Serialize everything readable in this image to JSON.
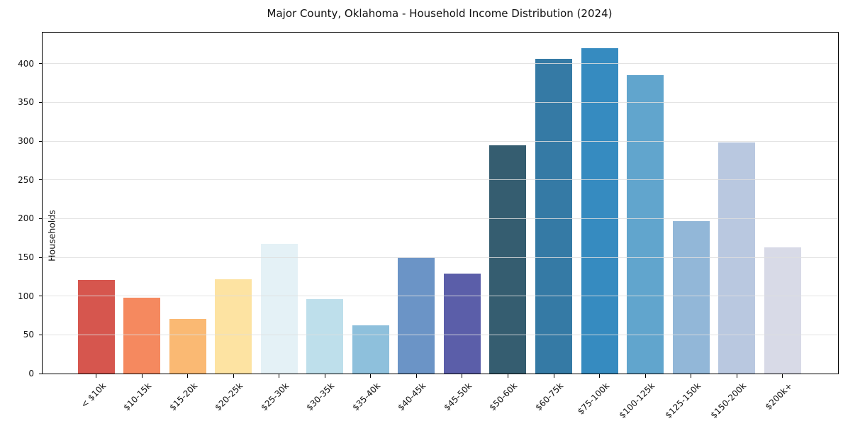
{
  "chart_data": {
    "type": "bar",
    "title": "Major County, Oklahoma - Household Income Distribution (2024)",
    "xlabel": "",
    "ylabel": "Households",
    "categories": [
      "< $10k",
      "$10-15k",
      "$15-20k",
      "$20-25k",
      "$25-30k",
      "$30-35k",
      "$35-40k",
      "$40-45k",
      "$45-50k",
      "$50-60k",
      "$60-75k",
      "$75-100k",
      "$100-125k",
      "$125-150k",
      "$150-200k",
      "$200k+"
    ],
    "values": [
      121,
      98,
      70,
      122,
      167,
      96,
      62,
      150,
      129,
      295,
      406,
      420,
      385,
      197,
      298,
      163
    ],
    "bar_colors": [
      "#d6564e",
      "#f5895f",
      "#fab973",
      "#fde3a2",
      "#e4f1f6",
      "#bedfeb",
      "#8ec0dc",
      "#6b94c6",
      "#5b5ea9",
      "#355d70",
      "#357aa5",
      "#368bc0",
      "#61a5cd",
      "#92b7d8",
      "#b9c8e0",
      "#d8dae7"
    ],
    "ylim": [
      0,
      440
    ],
    "yticks": [
      0,
      50,
      100,
      150,
      200,
      250,
      300,
      350,
      400
    ],
    "grid": "horizontal-light-gray",
    "legend": "none",
    "x_tick_rotation_deg": 45,
    "background_color": "#ffffff"
  }
}
